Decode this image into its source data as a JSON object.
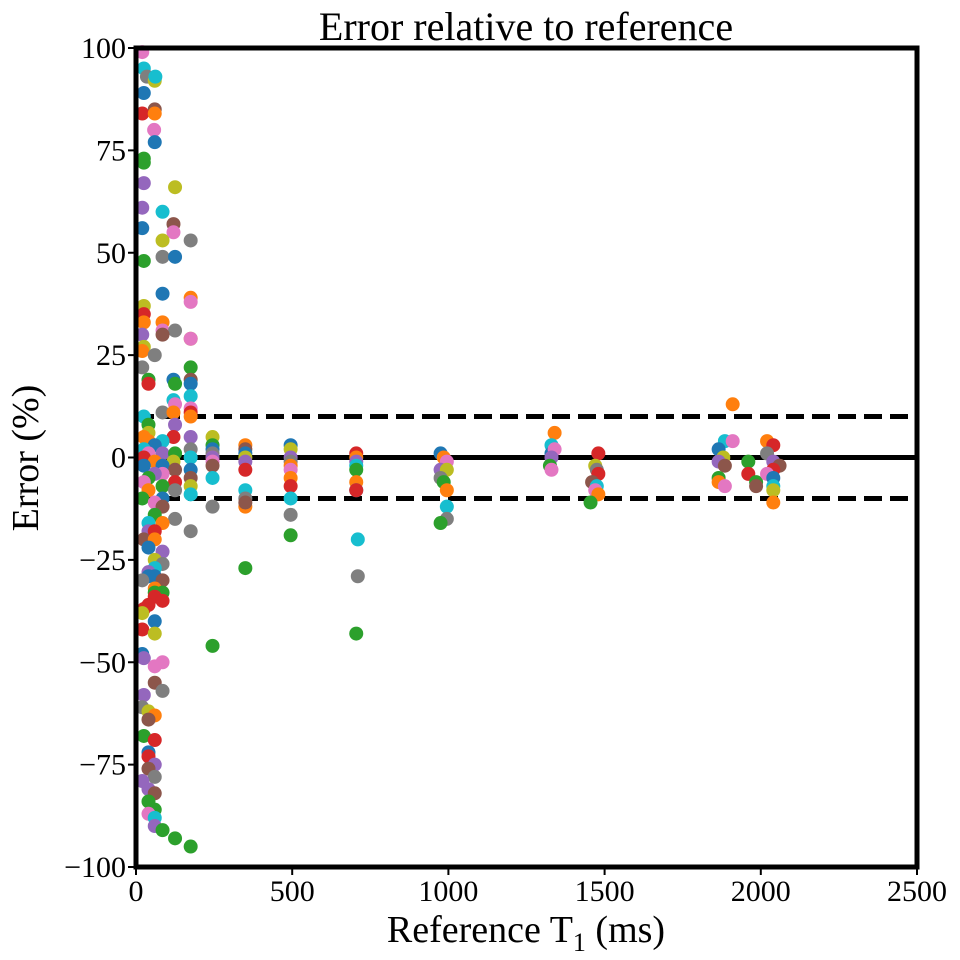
{
  "chart_data": {
    "type": "scatter",
    "title": "Error relative to reference",
    "xlabel": "Reference T",
    "xlabel_subscript": "1",
    "xlabel_suffix": " (ms)",
    "ylabel": "Error (%)",
    "xlim": [
      0,
      2500
    ],
    "ylim": [
      -100,
      100
    ],
    "xticks": [
      0,
      500,
      1000,
      1500,
      2000,
      2500
    ],
    "xtick_labels": [
      "0",
      "500",
      "1000",
      "1500",
      "2000",
      "2500"
    ],
    "yticks": [
      -100,
      -75,
      -50,
      -25,
      0,
      25,
      50,
      75,
      100
    ],
    "ytick_labels": [
      "−100",
      "−75",
      "−50",
      "−25",
      "0",
      "25",
      "50",
      "75",
      "100"
    ],
    "reference_lines": [
      {
        "y": 0,
        "style": "solid"
      },
      {
        "y": 10,
        "style": "dashed"
      },
      {
        "y": -10,
        "style": "dashed"
      }
    ],
    "grid": false,
    "legend": "none",
    "palette": [
      "#1f77b4",
      "#ff7f0e",
      "#2ca02c",
      "#d62728",
      "#9467bd",
      "#8c564b",
      "#e377c2",
      "#7f7f7f",
      "#bcbd22",
      "#17becf"
    ],
    "points": [
      {
        "x": 20,
        "y": 99,
        "c": 6
      },
      {
        "x": 25,
        "y": 95,
        "c": 9
      },
      {
        "x": 35,
        "y": 93,
        "c": 7
      },
      {
        "x": 60,
        "y": 92,
        "c": 8
      },
      {
        "x": 62,
        "y": 93,
        "c": 9
      },
      {
        "x": 25,
        "y": 89,
        "c": 0
      },
      {
        "x": 60,
        "y": 85,
        "c": 5
      },
      {
        "x": 20,
        "y": 84,
        "c": 3
      },
      {
        "x": 60,
        "y": 84,
        "c": 1
      },
      {
        "x": 58,
        "y": 80,
        "c": 6
      },
      {
        "x": 60,
        "y": 77,
        "c": 0
      },
      {
        "x": 25,
        "y": 73,
        "c": 2
      },
      {
        "x": 25,
        "y": 72,
        "c": 2
      },
      {
        "x": 25,
        "y": 67,
        "c": 4
      },
      {
        "x": 125,
        "y": 66,
        "c": 8
      },
      {
        "x": 20,
        "y": 61,
        "c": 4
      },
      {
        "x": 85,
        "y": 60,
        "c": 9
      },
      {
        "x": 120,
        "y": 57,
        "c": 5
      },
      {
        "x": 20,
        "y": 56,
        "c": 0
      },
      {
        "x": 120,
        "y": 55,
        "c": 6
      },
      {
        "x": 85,
        "y": 53,
        "c": 8
      },
      {
        "x": 175,
        "y": 53,
        "c": 7
      },
      {
        "x": 85,
        "y": 49,
        "c": 7
      },
      {
        "x": 125,
        "y": 49,
        "c": 0
      },
      {
        "x": 25,
        "y": 48,
        "c": 2
      },
      {
        "x": 85,
        "y": 40,
        "c": 0
      },
      {
        "x": 175,
        "y": 39,
        "c": 1
      },
      {
        "x": 175,
        "y": 38,
        "c": 6
      },
      {
        "x": 25,
        "y": 37,
        "c": 8
      },
      {
        "x": 25,
        "y": 35,
        "c": 3
      },
      {
        "x": 25,
        "y": 33,
        "c": 1
      },
      {
        "x": 85,
        "y": 33,
        "c": 1
      },
      {
        "x": 85,
        "y": 31,
        "c": 6
      },
      {
        "x": 125,
        "y": 31,
        "c": 7
      },
      {
        "x": 20,
        "y": 30,
        "c": 4
      },
      {
        "x": 85,
        "y": 30,
        "c": 5
      },
      {
        "x": 175,
        "y": 29,
        "c": 8
      },
      {
        "x": 175,
        "y": 29,
        "c": 6
      },
      {
        "x": 25,
        "y": 27,
        "c": 8
      },
      {
        "x": 20,
        "y": 26,
        "c": 1
      },
      {
        "x": 60,
        "y": 25,
        "c": 7
      },
      {
        "x": 20,
        "y": 22,
        "c": 7
      },
      {
        "x": 175,
        "y": 22,
        "c": 2
      },
      {
        "x": 40,
        "y": 19,
        "c": 2
      },
      {
        "x": 120,
        "y": 19,
        "c": 0
      },
      {
        "x": 125,
        "y": 18,
        "c": 2
      },
      {
        "x": 175,
        "y": 19,
        "c": 5
      },
      {
        "x": 175,
        "y": 18,
        "c": 0
      },
      {
        "x": 40,
        "y": 18,
        "c": 3
      },
      {
        "x": 175,
        "y": 15,
        "c": 9
      },
      {
        "x": 120,
        "y": 14,
        "c": 9
      },
      {
        "x": 125,
        "y": 13,
        "c": 6
      },
      {
        "x": 175,
        "y": 12,
        "c": 6
      },
      {
        "x": 175,
        "y": 11,
        "c": 3
      },
      {
        "x": 85,
        "y": 11,
        "c": 7
      },
      {
        "x": 120,
        "y": 11,
        "c": 1
      },
      {
        "x": 175,
        "y": 10,
        "c": 1
      },
      {
        "x": 25,
        "y": 10,
        "c": 9
      },
      {
        "x": 40,
        "y": 8,
        "c": 2
      },
      {
        "x": 125,
        "y": 8,
        "c": 4
      },
      {
        "x": 40,
        "y": 6,
        "c": 8
      },
      {
        "x": 120,
        "y": 5,
        "c": 3
      },
      {
        "x": 175,
        "y": 5,
        "c": 4
      },
      {
        "x": 25,
        "y": 5,
        "c": 1
      },
      {
        "x": 40,
        "y": 4,
        "c": 1
      },
      {
        "x": 85,
        "y": 4,
        "c": 9
      },
      {
        "x": 60,
        "y": 3,
        "c": 0
      },
      {
        "x": 25,
        "y": 2,
        "c": 9
      },
      {
        "x": 175,
        "y": 2,
        "c": 7
      },
      {
        "x": 40,
        "y": 1,
        "c": 6
      },
      {
        "x": 85,
        "y": 1,
        "c": 4
      },
      {
        "x": 125,
        "y": 1,
        "c": 2
      },
      {
        "x": 175,
        "y": 0,
        "c": 9
      },
      {
        "x": 25,
        "y": 0,
        "c": 3
      },
      {
        "x": 60,
        "y": -1,
        "c": 1
      },
      {
        "x": 120,
        "y": -1,
        "c": 8
      },
      {
        "x": 85,
        "y": -2,
        "c": 0
      },
      {
        "x": 175,
        "y": -3,
        "c": 0
      },
      {
        "x": 25,
        "y": -2,
        "c": 0
      },
      {
        "x": 125,
        "y": -3,
        "c": 5
      },
      {
        "x": 85,
        "y": -4,
        "c": 6
      },
      {
        "x": 60,
        "y": -4,
        "c": 4
      },
      {
        "x": 40,
        "y": -5,
        "c": 2
      },
      {
        "x": 175,
        "y": -5,
        "c": 5
      },
      {
        "x": 125,
        "y": -6,
        "c": 3
      },
      {
        "x": 25,
        "y": -6,
        "c": 6
      },
      {
        "x": 175,
        "y": -7,
        "c": 8
      },
      {
        "x": 85,
        "y": -7,
        "c": 2
      },
      {
        "x": 40,
        "y": -8,
        "c": 1
      },
      {
        "x": 125,
        "y": -8,
        "c": 7
      },
      {
        "x": 175,
        "y": -9,
        "c": 9
      },
      {
        "x": 85,
        "y": -10,
        "c": 0
      },
      {
        "x": 20,
        "y": -10,
        "c": 2
      },
      {
        "x": 60,
        "y": -11,
        "c": 6
      },
      {
        "x": 85,
        "y": -12,
        "c": 5
      },
      {
        "x": 60,
        "y": -14,
        "c": 2
      },
      {
        "x": 125,
        "y": -15,
        "c": 7
      },
      {
        "x": 40,
        "y": -16,
        "c": 9
      },
      {
        "x": 85,
        "y": -16,
        "c": 1
      },
      {
        "x": 40,
        "y": -18,
        "c": 4
      },
      {
        "x": 60,
        "y": -18,
        "c": 3
      },
      {
        "x": 175,
        "y": -18,
        "c": 7
      },
      {
        "x": 25,
        "y": -20,
        "c": 5
      },
      {
        "x": 60,
        "y": -20,
        "c": 1
      },
      {
        "x": 40,
        "y": -22,
        "c": 0
      },
      {
        "x": 85,
        "y": -23,
        "c": 4
      },
      {
        "x": 60,
        "y": -25,
        "c": 8
      },
      {
        "x": 85,
        "y": -26,
        "c": 7
      },
      {
        "x": 60,
        "y": -27,
        "c": 9
      },
      {
        "x": 40,
        "y": -28,
        "c": 4
      },
      {
        "x": 60,
        "y": -29,
        "c": 0
      },
      {
        "x": 40,
        "y": -29,
        "c": 0
      },
      {
        "x": 20,
        "y": -30,
        "c": 7
      },
      {
        "x": 85,
        "y": -30,
        "c": 5
      },
      {
        "x": 60,
        "y": -32,
        "c": 1
      },
      {
        "x": 60,
        "y": -33,
        "c": 2
      },
      {
        "x": 85,
        "y": -33,
        "c": 2
      },
      {
        "x": 60,
        "y": -34,
        "c": 3
      },
      {
        "x": 85,
        "y": -35,
        "c": 3
      },
      {
        "x": 40,
        "y": -36,
        "c": 3
      },
      {
        "x": 25,
        "y": -37,
        "c": 3
      },
      {
        "x": 20,
        "y": -38,
        "c": 8
      },
      {
        "x": 60,
        "y": -40,
        "c": 0
      },
      {
        "x": 20,
        "y": -42,
        "c": 3
      },
      {
        "x": 60,
        "y": -43,
        "c": 8
      },
      {
        "x": 20,
        "y": -48,
        "c": 0
      },
      {
        "x": 25,
        "y": -49,
        "c": 4
      },
      {
        "x": 85,
        "y": -50,
        "c": 6
      },
      {
        "x": 60,
        "y": -51,
        "c": 6
      },
      {
        "x": 60,
        "y": -55,
        "c": 5
      },
      {
        "x": 85,
        "y": -57,
        "c": 7
      },
      {
        "x": 25,
        "y": -58,
        "c": 4
      },
      {
        "x": 20,
        "y": -61,
        "c": 7
      },
      {
        "x": 40,
        "y": -62,
        "c": 8
      },
      {
        "x": 60,
        "y": -63,
        "c": 1
      },
      {
        "x": 40,
        "y": -64,
        "c": 5
      },
      {
        "x": 25,
        "y": -68,
        "c": 2
      },
      {
        "x": 60,
        "y": -69,
        "c": 3
      },
      {
        "x": 40,
        "y": -72,
        "c": 0
      },
      {
        "x": 40,
        "y": -73,
        "c": 3
      },
      {
        "x": 60,
        "y": -75,
        "c": 4
      },
      {
        "x": 40,
        "y": -76,
        "c": 5
      },
      {
        "x": 60,
        "y": -78,
        "c": 7
      },
      {
        "x": 20,
        "y": -79,
        "c": 4
      },
      {
        "x": 40,
        "y": -81,
        "c": 4
      },
      {
        "x": 60,
        "y": -82,
        "c": 5
      },
      {
        "x": 40,
        "y": -84,
        "c": 2
      },
      {
        "x": 60,
        "y": -86,
        "c": 2
      },
      {
        "x": 40,
        "y": -87,
        "c": 6
      },
      {
        "x": 60,
        "y": -88,
        "c": 9
      },
      {
        "x": 60,
        "y": -90,
        "c": 4
      },
      {
        "x": 85,
        "y": -91,
        "c": 2
      },
      {
        "x": 125,
        "y": -93,
        "c": 2
      },
      {
        "x": 175,
        "y": -95,
        "c": 2
      },
      {
        "x": 245,
        "y": 5,
        "c": 8
      },
      {
        "x": 245,
        "y": 3,
        "c": 2
      },
      {
        "x": 245,
        "y": 2,
        "c": 0
      },
      {
        "x": 245,
        "y": 1,
        "c": 7
      },
      {
        "x": 245,
        "y": 0,
        "c": 1
      },
      {
        "x": 245,
        "y": 0,
        "c": 4
      },
      {
        "x": 245,
        "y": -1,
        "c": 6
      },
      {
        "x": 245,
        "y": -2,
        "c": 5
      },
      {
        "x": 245,
        "y": -5,
        "c": 9
      },
      {
        "x": 245,
        "y": -12,
        "c": 7
      },
      {
        "x": 245,
        "y": -46,
        "c": 2
      },
      {
        "x": 350,
        "y": 3,
        "c": 1
      },
      {
        "x": 350,
        "y": 2,
        "c": 5
      },
      {
        "x": 350,
        "y": 1,
        "c": 0
      },
      {
        "x": 350,
        "y": 0,
        "c": 8
      },
      {
        "x": 350,
        "y": -1,
        "c": 4
      },
      {
        "x": 350,
        "y": -3,
        "c": 3
      },
      {
        "x": 350,
        "y": -8,
        "c": 9
      },
      {
        "x": 350,
        "y": -10,
        "c": 7
      },
      {
        "x": 350,
        "y": -12,
        "c": 1
      },
      {
        "x": 350,
        "y": -11,
        "c": 5
      },
      {
        "x": 350,
        "y": -27,
        "c": 2
      },
      {
        "x": 495,
        "y": 3,
        "c": 0
      },
      {
        "x": 495,
        "y": 2,
        "c": 8
      },
      {
        "x": 495,
        "y": 0,
        "c": 4
      },
      {
        "x": 495,
        "y": -1,
        "c": 7
      },
      {
        "x": 495,
        "y": -2,
        "c": 1
      },
      {
        "x": 495,
        "y": -3,
        "c": 6
      },
      {
        "x": 495,
        "y": -5,
        "c": 1
      },
      {
        "x": 495,
        "y": -7,
        "c": 3
      },
      {
        "x": 495,
        "y": -10,
        "c": 9
      },
      {
        "x": 495,
        "y": -14,
        "c": 7
      },
      {
        "x": 495,
        "y": -19,
        "c": 2
      },
      {
        "x": 705,
        "y": 1,
        "c": 3
      },
      {
        "x": 705,
        "y": 0,
        "c": 1
      },
      {
        "x": 705,
        "y": -1,
        "c": 4
      },
      {
        "x": 705,
        "y": -2,
        "c": 9
      },
      {
        "x": 705,
        "y": -3,
        "c": 2
      },
      {
        "x": 705,
        "y": -6,
        "c": 1
      },
      {
        "x": 705,
        "y": -8,
        "c": 0
      },
      {
        "x": 705,
        "y": -8,
        "c": 3
      },
      {
        "x": 710,
        "y": -20,
        "c": 9
      },
      {
        "x": 710,
        "y": -29,
        "c": 7
      },
      {
        "x": 705,
        "y": -43,
        "c": 2
      },
      {
        "x": 975,
        "y": 1,
        "c": 0
      },
      {
        "x": 985,
        "y": 0,
        "c": 1
      },
      {
        "x": 995,
        "y": -1,
        "c": 6
      },
      {
        "x": 975,
        "y": -3,
        "c": 4
      },
      {
        "x": 995,
        "y": -3,
        "c": 8
      },
      {
        "x": 975,
        "y": -5,
        "c": 7
      },
      {
        "x": 985,
        "y": -6,
        "c": 2
      },
      {
        "x": 995,
        "y": -8,
        "c": 1
      },
      {
        "x": 995,
        "y": -12,
        "c": 9
      },
      {
        "x": 995,
        "y": -15,
        "c": 7
      },
      {
        "x": 975,
        "y": -16,
        "c": 2
      },
      {
        "x": 1340,
        "y": 6,
        "c": 1
      },
      {
        "x": 1330,
        "y": 3,
        "c": 9
      },
      {
        "x": 1330,
        "y": 1,
        "c": 0
      },
      {
        "x": 1340,
        "y": 2,
        "c": 6
      },
      {
        "x": 1330,
        "y": 0,
        "c": 4
      },
      {
        "x": 1325,
        "y": -2,
        "c": 2
      },
      {
        "x": 1330,
        "y": -3,
        "c": 6
      },
      {
        "x": 1480,
        "y": 1,
        "c": 3
      },
      {
        "x": 1470,
        "y": -2,
        "c": 8
      },
      {
        "x": 1475,
        "y": -3,
        "c": 7
      },
      {
        "x": 1480,
        "y": -4,
        "c": 3
      },
      {
        "x": 1460,
        "y": -6,
        "c": 5
      },
      {
        "x": 1475,
        "y": -7,
        "c": 9
      },
      {
        "x": 1470,
        "y": -8,
        "c": 6
      },
      {
        "x": 1480,
        "y": -9,
        "c": 1
      },
      {
        "x": 1455,
        "y": -11,
        "c": 2
      },
      {
        "x": 1910,
        "y": 13,
        "c": 1
      },
      {
        "x": 1885,
        "y": 4,
        "c": 9
      },
      {
        "x": 1910,
        "y": 4,
        "c": 6
      },
      {
        "x": 1865,
        "y": 2,
        "c": 0
      },
      {
        "x": 1880,
        "y": 0,
        "c": 8
      },
      {
        "x": 1865,
        "y": -1,
        "c": 4
      },
      {
        "x": 1885,
        "y": -2,
        "c": 5
      },
      {
        "x": 1865,
        "y": -5,
        "c": 2
      },
      {
        "x": 1865,
        "y": -6,
        "c": 1
      },
      {
        "x": 1885,
        "y": -7,
        "c": 6
      },
      {
        "x": 1960,
        "y": -1,
        "c": 2
      },
      {
        "x": 1960,
        "y": -4,
        "c": 3
      },
      {
        "x": 1985,
        "y": -6,
        "c": 2
      },
      {
        "x": 1985,
        "y": -7,
        "c": 5
      },
      {
        "x": 2020,
        "y": 4,
        "c": 1
      },
      {
        "x": 2040,
        "y": 3,
        "c": 3
      },
      {
        "x": 2020,
        "y": 1,
        "c": 7
      },
      {
        "x": 2040,
        "y": -1,
        "c": 4
      },
      {
        "x": 2060,
        "y": -2,
        "c": 5
      },
      {
        "x": 2040,
        "y": -3,
        "c": 3
      },
      {
        "x": 2020,
        "y": -4,
        "c": 6
      },
      {
        "x": 2040,
        "y": -5,
        "c": 0
      },
      {
        "x": 2040,
        "y": -7,
        "c": 9
      },
      {
        "x": 2040,
        "y": -8,
        "c": 8
      },
      {
        "x": 2040,
        "y": -11,
        "c": 1
      }
    ]
  }
}
